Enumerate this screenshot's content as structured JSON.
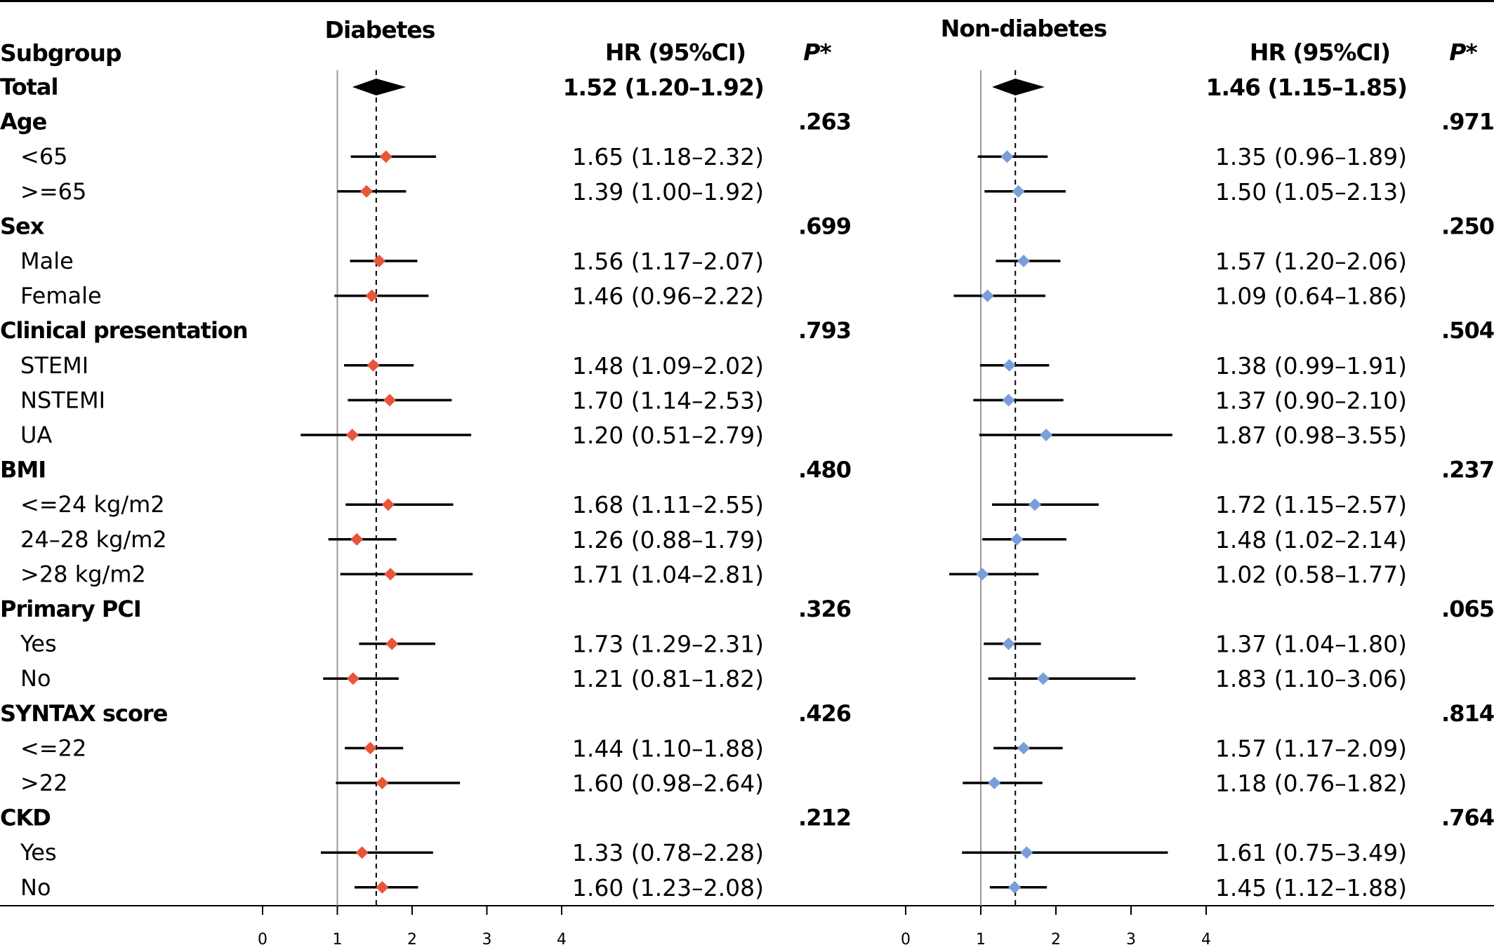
{
  "headers": {
    "subgroup": "Subgroup",
    "diabetes": "Diabetes",
    "non_diabetes": "Non-diabetes",
    "hr": "HR (95%CI)",
    "p": "P*"
  },
  "chart_data": {
    "type": "forest",
    "reference_line": 1,
    "xlim": [
      0,
      4
    ],
    "ticks": [
      0,
      1,
      2,
      3,
      4
    ],
    "panels": [
      {
        "name": "Diabetes",
        "color": "#E8553A",
        "overall": 1.52,
        "rows": [
          {
            "label": "Total",
            "bold": true,
            "summary": true,
            "est": 1.52,
            "lo": 1.2,
            "hi": 1.92,
            "hr_text": "1.52 (1.20–1.92)",
            "p": ""
          },
          {
            "label": "Age",
            "bold": true,
            "p": ".263"
          },
          {
            "label": "<65",
            "est": 1.65,
            "lo": 1.18,
            "hi": 2.32,
            "hr_text": "1.65 (1.18–2.32)"
          },
          {
            "label": ">=65",
            "est": 1.39,
            "lo": 1.0,
            "hi": 1.92,
            "hr_text": "1.39 (1.00–1.92)"
          },
          {
            "label": "Sex",
            "bold": true,
            "p": ".699"
          },
          {
            "label": "Male",
            "est": 1.56,
            "lo": 1.17,
            "hi": 2.07,
            "hr_text": "1.56 (1.17–2.07)"
          },
          {
            "label": "Female",
            "est": 1.46,
            "lo": 0.96,
            "hi": 2.22,
            "hr_text": "1.46 (0.96–2.22)"
          },
          {
            "label": "Clinical presentation",
            "bold": true,
            "p": ".793"
          },
          {
            "label": "STEMI",
            "est": 1.48,
            "lo": 1.09,
            "hi": 2.02,
            "hr_text": "1.48 (1.09–2.02)"
          },
          {
            "label": "NSTEMI",
            "est": 1.7,
            "lo": 1.14,
            "hi": 2.53,
            "hr_text": "1.70 (1.14–2.53)"
          },
          {
            "label": "UA",
            "est": 1.2,
            "lo": 0.51,
            "hi": 2.79,
            "hr_text": "1.20 (0.51–2.79)"
          },
          {
            "label": "BMI",
            "bold": true,
            "p": ".480"
          },
          {
            "label": "<=24 kg/m2",
            "est": 1.68,
            "lo": 1.11,
            "hi": 2.55,
            "hr_text": "1.68 (1.11–2.55)"
          },
          {
            "label": "24–28 kg/m2",
            "est": 1.26,
            "lo": 0.88,
            "hi": 1.79,
            "hr_text": "1.26 (0.88–1.79)"
          },
          {
            "label": ">28 kg/m2",
            "est": 1.71,
            "lo": 1.04,
            "hi": 2.81,
            "hr_text": "1.71 (1.04–2.81)"
          },
          {
            "label": "Primary PCI",
            "bold": true,
            "p": ".326"
          },
          {
            "label": "Yes",
            "est": 1.73,
            "lo": 1.29,
            "hi": 2.31,
            "hr_text": "1.73 (1.29–2.31)"
          },
          {
            "label": "No",
            "est": 1.21,
            "lo": 0.81,
            "hi": 1.82,
            "hr_text": "1.21 (0.81–1.82)"
          },
          {
            "label": "SYNTAX score",
            "bold": true,
            "p": ".426"
          },
          {
            "label": "<=22",
            "est": 1.44,
            "lo": 1.1,
            "hi": 1.88,
            "hr_text": "1.44 (1.10–1.88)"
          },
          {
            "label": ">22",
            "est": 1.6,
            "lo": 0.98,
            "hi": 2.64,
            "hr_text": "1.60 (0.98–2.64)"
          },
          {
            "label": "CKD",
            "bold": true,
            "p": ".212"
          },
          {
            "label": "Yes",
            "est": 1.33,
            "lo": 0.78,
            "hi": 2.28,
            "hr_text": "1.33 (0.78–2.28)"
          },
          {
            "label": "No",
            "est": 1.6,
            "lo": 1.23,
            "hi": 2.08,
            "hr_text": "1.60 (1.23–2.08)"
          }
        ]
      },
      {
        "name": "Non-diabetes",
        "color": "#7A9ED9",
        "overall": 1.46,
        "rows": [
          {
            "summary": true,
            "est": 1.46,
            "lo": 1.15,
            "hi": 1.85,
            "hr_text": "1.46 (1.15–1.85)",
            "p": ""
          },
          {
            "p": ".971"
          },
          {
            "est": 1.35,
            "lo": 0.96,
            "hi": 1.89,
            "hr_text": "1.35 (0.96–1.89)"
          },
          {
            "est": 1.5,
            "lo": 1.05,
            "hi": 2.13,
            "hr_text": "1.50 (1.05–2.13)"
          },
          {
            "p": ".250"
          },
          {
            "est": 1.57,
            "lo": 1.2,
            "hi": 2.06,
            "hr_text": "1.57 (1.20–2.06)"
          },
          {
            "est": 1.09,
            "lo": 0.64,
            "hi": 1.86,
            "hr_text": "1.09 (0.64–1.86)"
          },
          {
            "p": ".504"
          },
          {
            "est": 1.38,
            "lo": 0.99,
            "hi": 1.91,
            "hr_text": "1.38 (0.99–1.91)"
          },
          {
            "est": 1.37,
            "lo": 0.9,
            "hi": 2.1,
            "hr_text": "1.37 (0.90–2.10)"
          },
          {
            "est": 1.87,
            "lo": 0.98,
            "hi": 3.55,
            "hr_text": "1.87 (0.98–3.55)"
          },
          {
            "p": ".237"
          },
          {
            "est": 1.72,
            "lo": 1.15,
            "hi": 2.57,
            "hr_text": "1.72 (1.15–2.57)"
          },
          {
            "est": 1.48,
            "lo": 1.02,
            "hi": 2.14,
            "hr_text": "1.48 (1.02–2.14)"
          },
          {
            "est": 1.02,
            "lo": 0.58,
            "hi": 1.77,
            "hr_text": "1.02 (0.58–1.77)"
          },
          {
            "p": ".065"
          },
          {
            "est": 1.37,
            "lo": 1.04,
            "hi": 1.8,
            "hr_text": "1.37 (1.04–1.80)"
          },
          {
            "est": 1.83,
            "lo": 1.1,
            "hi": 3.06,
            "hr_text": "1.83 (1.10–3.06)"
          },
          {
            "p": ".814"
          },
          {
            "est": 1.57,
            "lo": 1.17,
            "hi": 2.09,
            "hr_text": "1.57 (1.17–2.09)"
          },
          {
            "est": 1.18,
            "lo": 0.76,
            "hi": 1.82,
            "hr_text": "1.18 (0.76–1.82)"
          },
          {
            "p": ".764"
          },
          {
            "est": 1.61,
            "lo": 0.75,
            "hi": 3.49,
            "hr_text": "1.61 (0.75–3.49)"
          },
          {
            "est": 1.45,
            "lo": 1.12,
            "hi": 1.88,
            "hr_text": "1.45 (1.12–1.88)"
          }
        ]
      }
    ]
  }
}
